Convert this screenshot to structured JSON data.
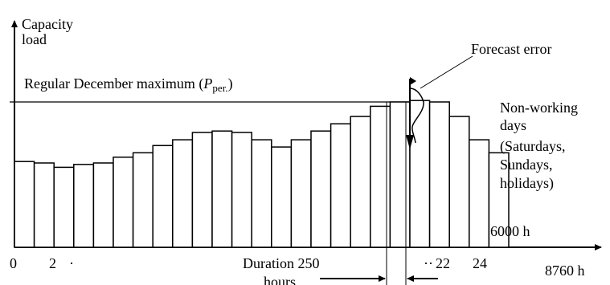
{
  "labels": {
    "y_axis_line1": "Capacity",
    "y_axis_line2": "load",
    "forecast_error": "Forecast error",
    "regular_max_prefix": "Regular December maximum (",
    "regular_max_symbol": "P",
    "regular_max_subscript": "per.",
    "regular_max_suffix": ")",
    "nonworking": [
      "Non-working",
      "days",
      "(Saturdays,",
      "Sundays,",
      "holidays)"
    ],
    "label_6000h": "6000 h",
    "label_8760h": "8760 h",
    "duration_line1": "Duration 250",
    "duration_line2": "hours",
    "tick_0": "0",
    "tick_2": "2",
    "tick_dot": "·",
    "tick_dots": "··",
    "tick_22": "22",
    "tick_24": "24"
  },
  "bars": [
    {
      "index": 1,
      "load": 0.59
    },
    {
      "index": 2,
      "load": 0.58
    },
    {
      "index": 3,
      "load": 0.55
    },
    {
      "index": 4,
      "load": 0.57
    },
    {
      "index": 5,
      "load": 0.58
    },
    {
      "index": 6,
      "load": 0.62
    },
    {
      "index": 7,
      "load": 0.65
    },
    {
      "index": 8,
      "load": 0.7
    },
    {
      "index": 9,
      "load": 0.74
    },
    {
      "index": 10,
      "load": 0.79
    },
    {
      "index": 11,
      "load": 0.8
    },
    {
      "index": 12,
      "load": 0.79
    },
    {
      "index": 13,
      "load": 0.74
    },
    {
      "index": 14,
      "load": 0.69
    },
    {
      "index": 15,
      "load": 0.74
    },
    {
      "index": 16,
      "load": 0.8
    },
    {
      "index": 17,
      "load": 0.85
    },
    {
      "index": 18,
      "load": 0.9
    },
    {
      "index": 19,
      "load": 0.97
    },
    {
      "index": 20,
      "load": 1.0
    },
    {
      "index": 21,
      "load": 1.01
    },
    {
      "index": 22,
      "load": 1.0
    },
    {
      "index": 23,
      "load": 0.9
    },
    {
      "index": 24,
      "load": 0.74
    },
    {
      "index": 25,
      "load": 0.65
    }
  ]
}
